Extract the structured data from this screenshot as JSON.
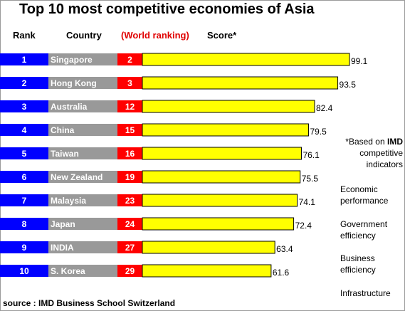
{
  "chart_data": {
    "type": "table",
    "title": "Top 10 most competitive economies of Asia",
    "columns": [
      "Rank",
      "Country",
      "(World ranking)",
      "Score*"
    ],
    "rows": [
      {
        "rank": "1",
        "country": "Singapore",
        "world_ranking": "2",
        "score": 99.1,
        "score_label": "99.1"
      },
      {
        "rank": "2",
        "country": "Hong Kong",
        "world_ranking": "3",
        "score": 93.5,
        "score_label": "93.5"
      },
      {
        "rank": "3",
        "country": "Australia",
        "world_ranking": "12",
        "score": 82.4,
        "score_label": "82.4"
      },
      {
        "rank": "4",
        "country": "China",
        "world_ranking": "15",
        "score": 79.5,
        "score_label": "79.5"
      },
      {
        "rank": "5",
        "country": "Taiwan",
        "world_ranking": "16",
        "score": 76.1,
        "score_label": "76.1"
      },
      {
        "rank": "6",
        "country": "New Zealand",
        "world_ranking": "19",
        "score": 75.5,
        "score_label": "75.5"
      },
      {
        "rank": "7",
        "country": "Malaysia",
        "world_ranking": "23",
        "score": 74.1,
        "score_label": "74.1"
      },
      {
        "rank": "8",
        "country": "Japan",
        "world_ranking": "24",
        "score": 72.4,
        "score_label": "72.4"
      },
      {
        "rank": "9",
        "country": "INDIA",
        "world_ranking": "27",
        "score": 63.4,
        "score_label": "63.4"
      },
      {
        "rank": "10",
        "country": "S. Korea",
        "world_ranking": "29",
        "score": 61.6,
        "score_label": "61.6"
      }
    ],
    "score_max": 100
  },
  "note": {
    "prefix": "*Based on ",
    "bold": "IMD",
    "rest": " competitive indicators"
  },
  "indicators": [
    "Economic performance",
    "Government efficiency",
    "Business efficiency",
    "Infrastructure"
  ],
  "source": "source : IMD Business School Switzerland",
  "colors": {
    "rank_bg": "#0000ff",
    "country_bg": "#999999",
    "world_bg": "#ff0000",
    "score_bar": "#ffff00",
    "score_border": "#000000"
  }
}
